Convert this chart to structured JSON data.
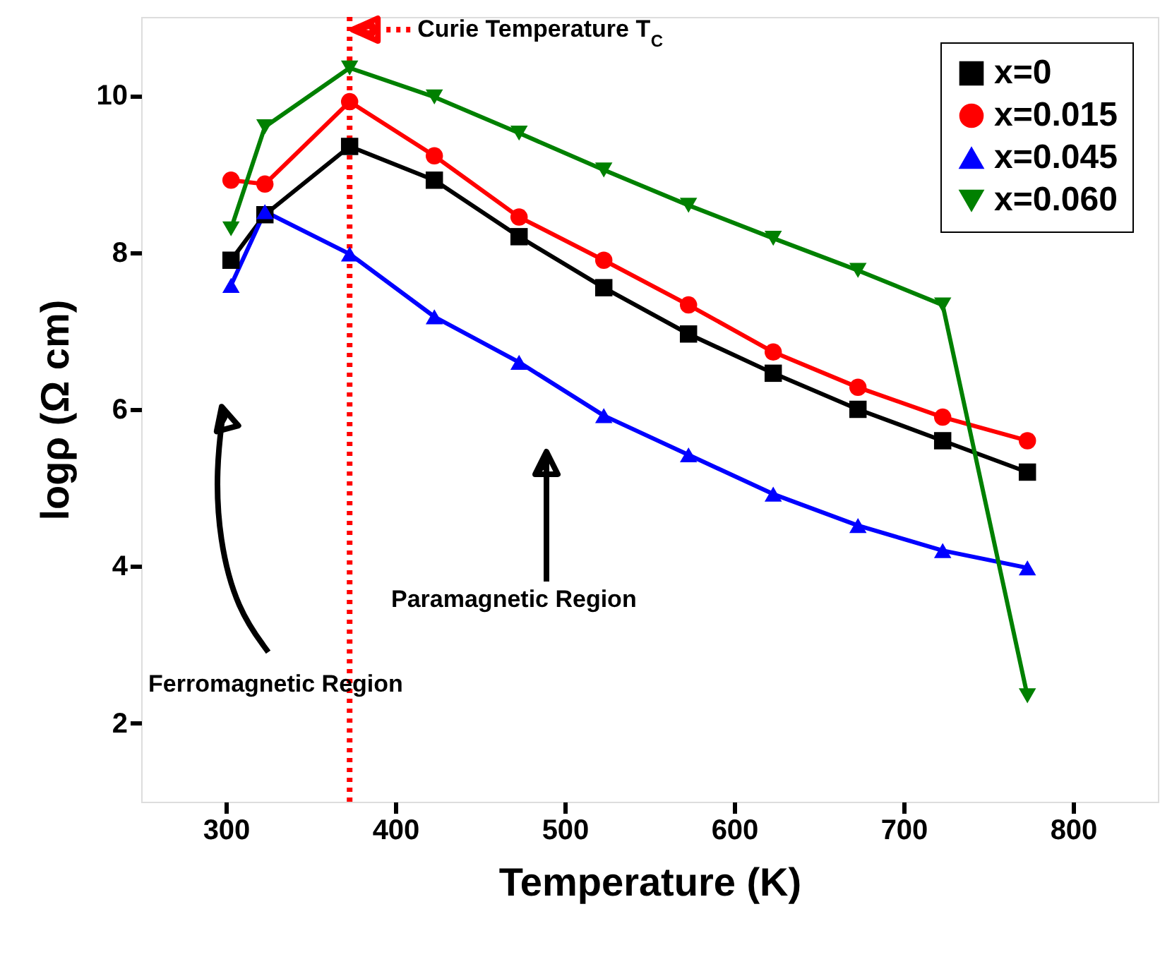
{
  "chart_data": {
    "type": "line",
    "xlabel": "Temperature (K)",
    "ylabel": "logρ (Ω cm)",
    "x": [
      303,
      323,
      373,
      423,
      473,
      523,
      573,
      623,
      673,
      723,
      773
    ],
    "xlim": [
      250,
      850
    ],
    "xticks": [
      300,
      400,
      500,
      600,
      700,
      800
    ],
    "ylim": [
      1,
      11
    ],
    "yticks": [
      2,
      4,
      6,
      8,
      10
    ],
    "grid": false,
    "legend": "top right",
    "line_style": "solid",
    "series": [
      {
        "name": "x=0",
        "color": "#000000",
        "marker": "square",
        "values": [
          7.9,
          8.48,
          9.35,
          8.92,
          8.2,
          7.55,
          6.96,
          6.46,
          6.0,
          5.6,
          5.2
        ]
      },
      {
        "name": "x=0.015",
        "color": "#ff0000",
        "marker": "circle",
        "values": [
          8.92,
          8.87,
          9.92,
          9.23,
          8.45,
          7.9,
          7.33,
          6.73,
          6.28,
          5.9,
          5.6
        ]
      },
      {
        "name": "x=0.045",
        "color": "#0000ff",
        "marker": "triangle",
        "values": [
          7.58,
          8.52,
          7.98,
          7.18,
          6.6,
          5.92,
          5.42,
          4.92,
          4.52,
          4.2,
          3.98
        ]
      },
      {
        "name": "x=0.060",
        "color": "#008000",
        "marker": "triangle-down",
        "values": [
          8.3,
          9.6,
          10.35,
          9.98,
          9.52,
          9.05,
          8.6,
          8.18,
          7.77,
          7.33,
          2.35
        ]
      }
    ],
    "ref_lines": [
      {
        "axis": "x",
        "value": 373,
        "label": "Curie Temperature T$_{C}$",
        "color": "#ff0000",
        "line_style": "dotted"
      }
    ],
    "annotations": [
      "Ferromagnetic Region",
      "Paramagnetic Region"
    ]
  }
}
